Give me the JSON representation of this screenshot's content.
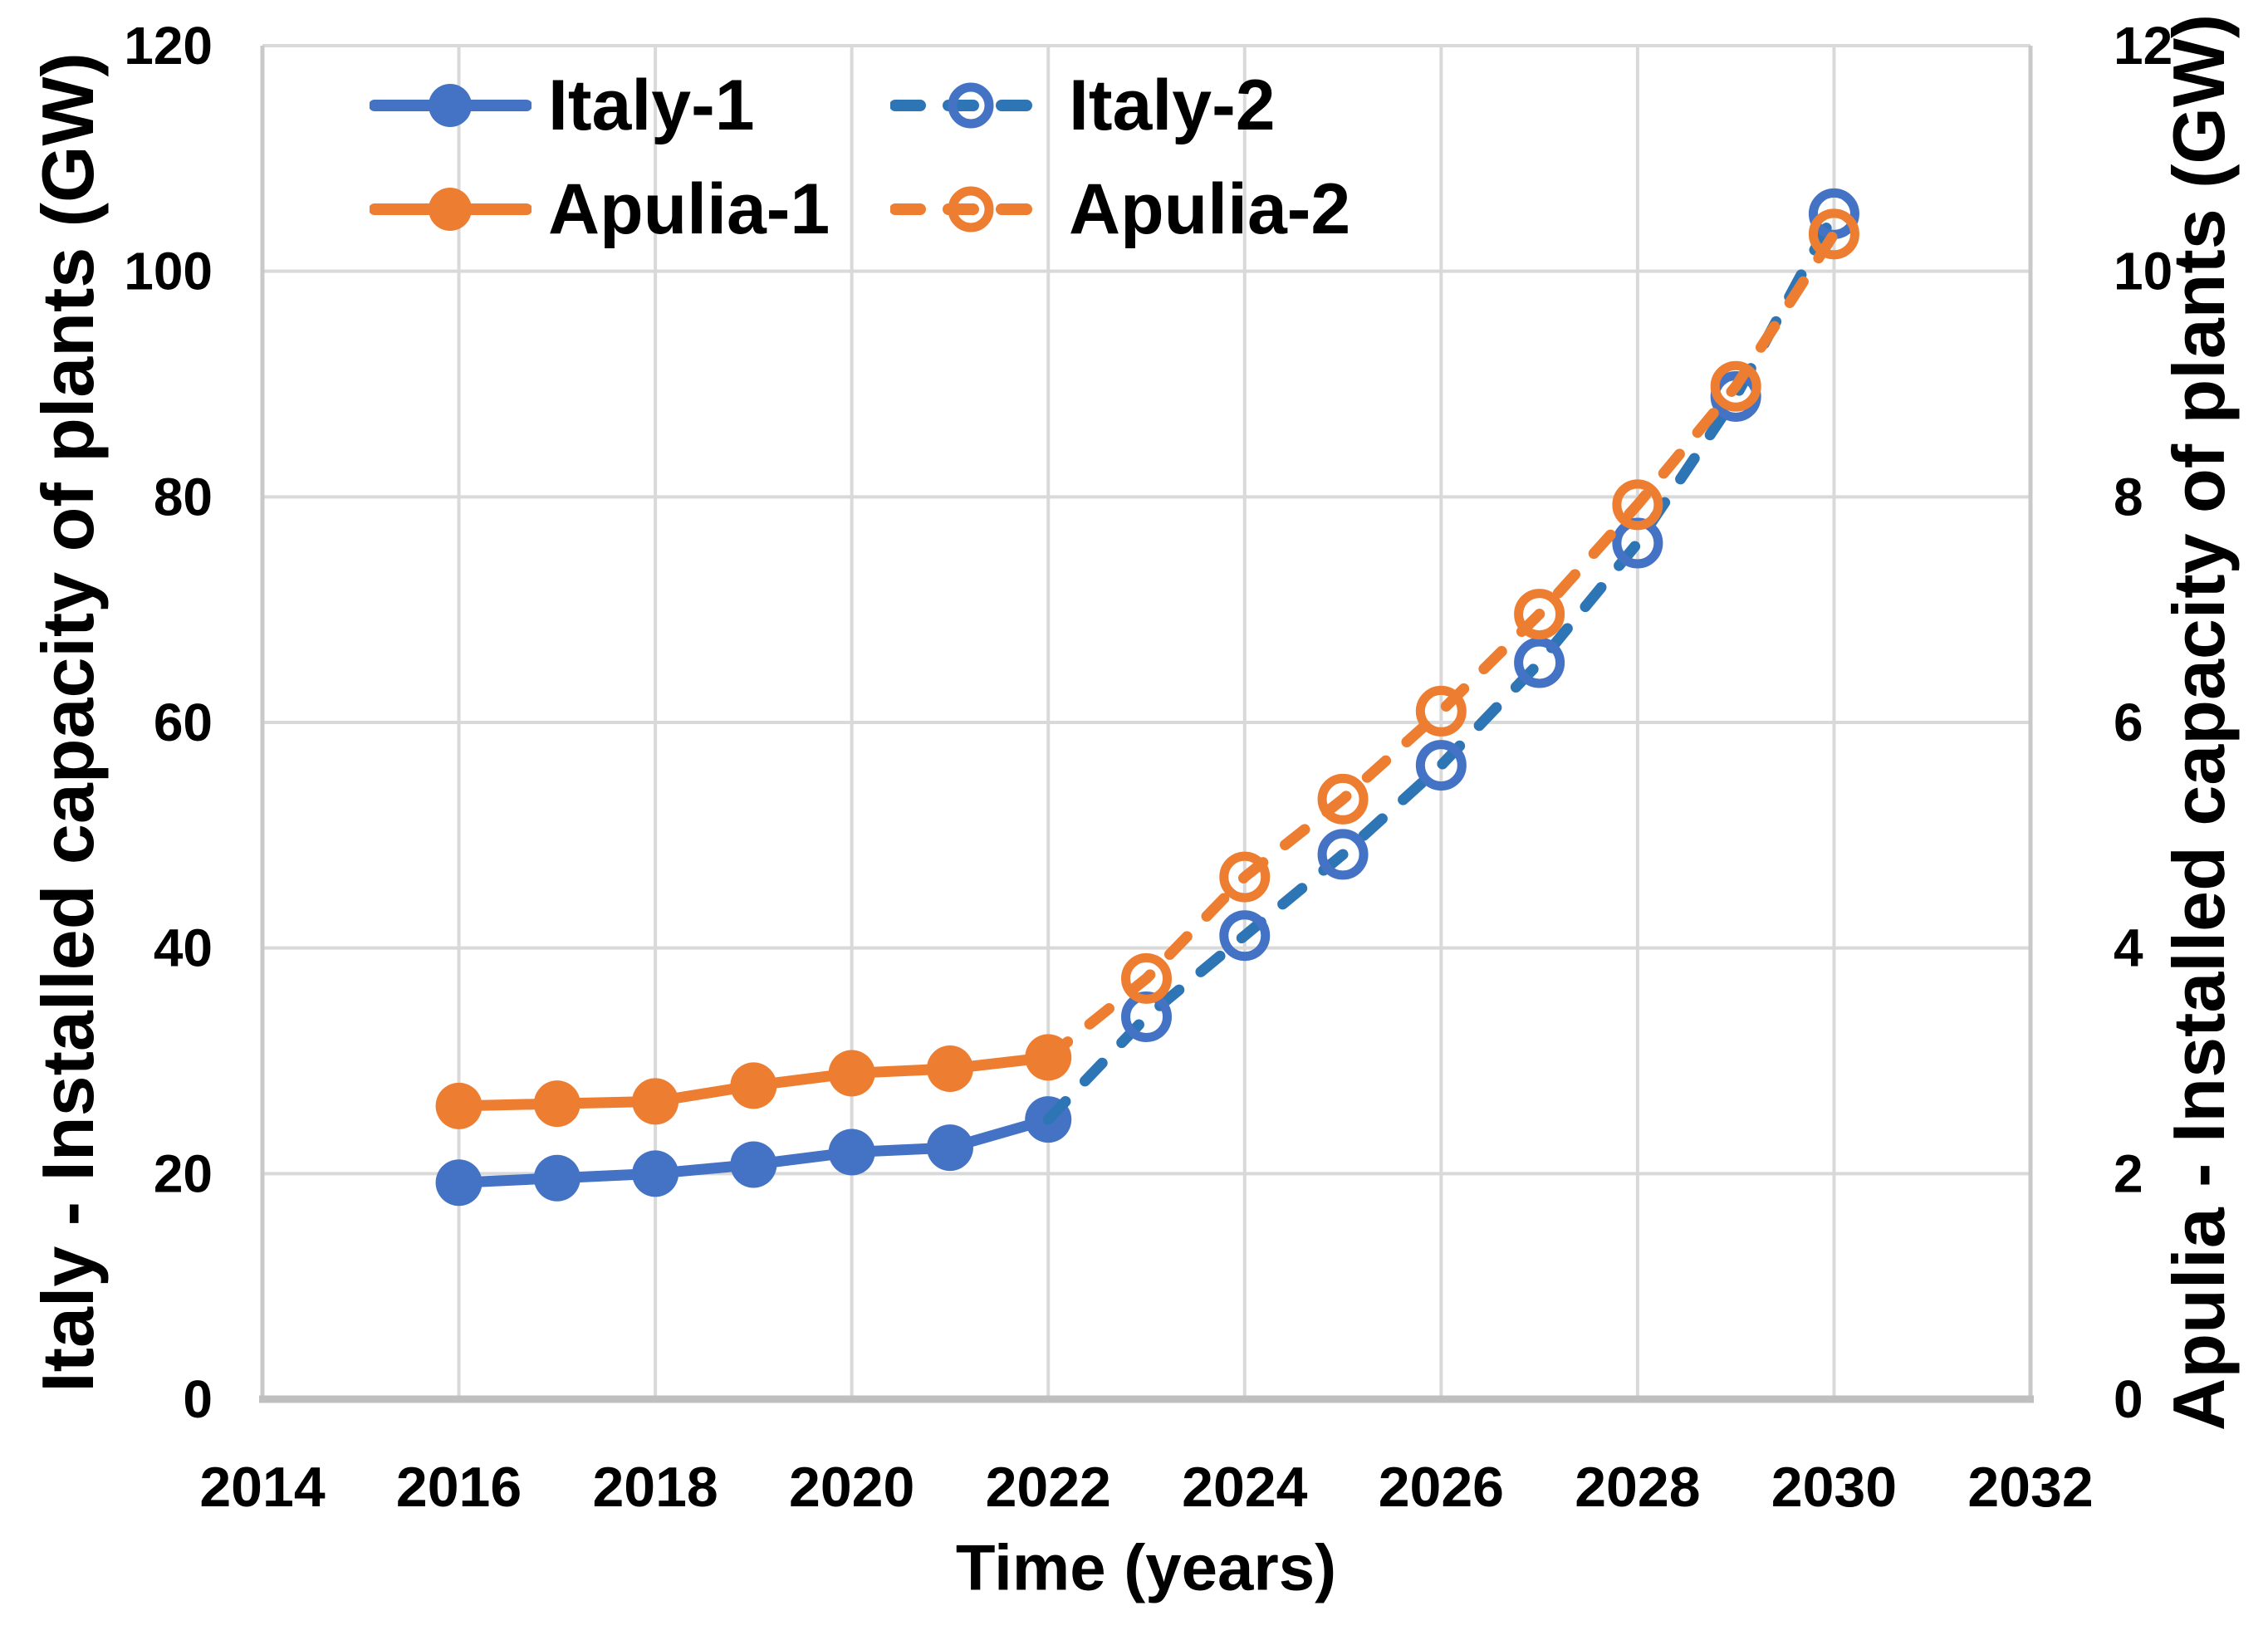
{
  "chart_data": {
    "type": "line",
    "title": "",
    "xlabel": "Time (years)",
    "ylabel_left": "Italy - Installed capacity of plants (GW)",
    "ylabel_right": "Apulia - Installed capacity of plants (GW)",
    "x_ticks": [
      2014,
      2016,
      2018,
      2020,
      2022,
      2024,
      2026,
      2028,
      2030,
      2032
    ],
    "y_left": {
      "min": 0,
      "max": 120,
      "ticks": [
        0,
        20,
        40,
        60,
        80,
        100,
        120
      ]
    },
    "y_right": {
      "min": 0,
      "max": 12,
      "ticks": [
        0,
        2,
        4,
        6,
        8,
        10,
        12
      ]
    },
    "grid": true,
    "legend_position": "top-left-inside",
    "series": [
      {
        "name": "Italy-1",
        "axis": "left",
        "style": "solid",
        "marker": "filled",
        "color": "#4472C4",
        "marker_color": "#4472C4",
        "x": [
          2016,
          2017,
          2018,
          2019,
          2020,
          2021,
          2022
        ],
        "values": [
          19.2,
          19.6,
          20.0,
          20.8,
          21.9,
          22.3,
          24.8
        ]
      },
      {
        "name": "Italy-2",
        "axis": "left",
        "style": "dashed",
        "marker": "open",
        "color": "#2E75B6",
        "marker_color": "#4472C4",
        "marker_from_x": 2023,
        "x": [
          2022,
          2023,
          2024,
          2025,
          2026,
          2027,
          2028,
          2029,
          2030
        ],
        "values": [
          24.8,
          33.9,
          41.1,
          48.3,
          56.2,
          65.3,
          75.9,
          88.9,
          105.1
        ]
      },
      {
        "name": "Apulia-1",
        "axis": "right",
        "style": "solid",
        "marker": "filled",
        "color": "#ED7D31",
        "marker_color": "#ED7D31",
        "x": [
          2016,
          2017,
          2018,
          2019,
          2020,
          2021,
          2022
        ],
        "values": [
          2.6,
          2.62,
          2.64,
          2.78,
          2.89,
          2.93,
          3.03
        ]
      },
      {
        "name": "Apulia-2",
        "axis": "right",
        "style": "dashed",
        "marker": "open",
        "color": "#ED7D31",
        "marker_color": "#ED7D31",
        "marker_from_x": 2023,
        "x": [
          2022,
          2023,
          2024,
          2025,
          2026,
          2027,
          2028,
          2029,
          2030
        ],
        "values": [
          3.03,
          3.73,
          4.63,
          5.32,
          6.1,
          6.96,
          7.93,
          8.98,
          10.33
        ]
      }
    ],
    "legend_order": [
      "Italy-1",
      "Italy-2",
      "Apulia-1",
      "Apulia-2"
    ]
  },
  "colors": {
    "background": "#FFFFFF",
    "gridline": "#D9D9D9",
    "axis_line": "#C9C9C9",
    "bottom_axis_line": "#BFBFBF",
    "text": "#000000"
  }
}
